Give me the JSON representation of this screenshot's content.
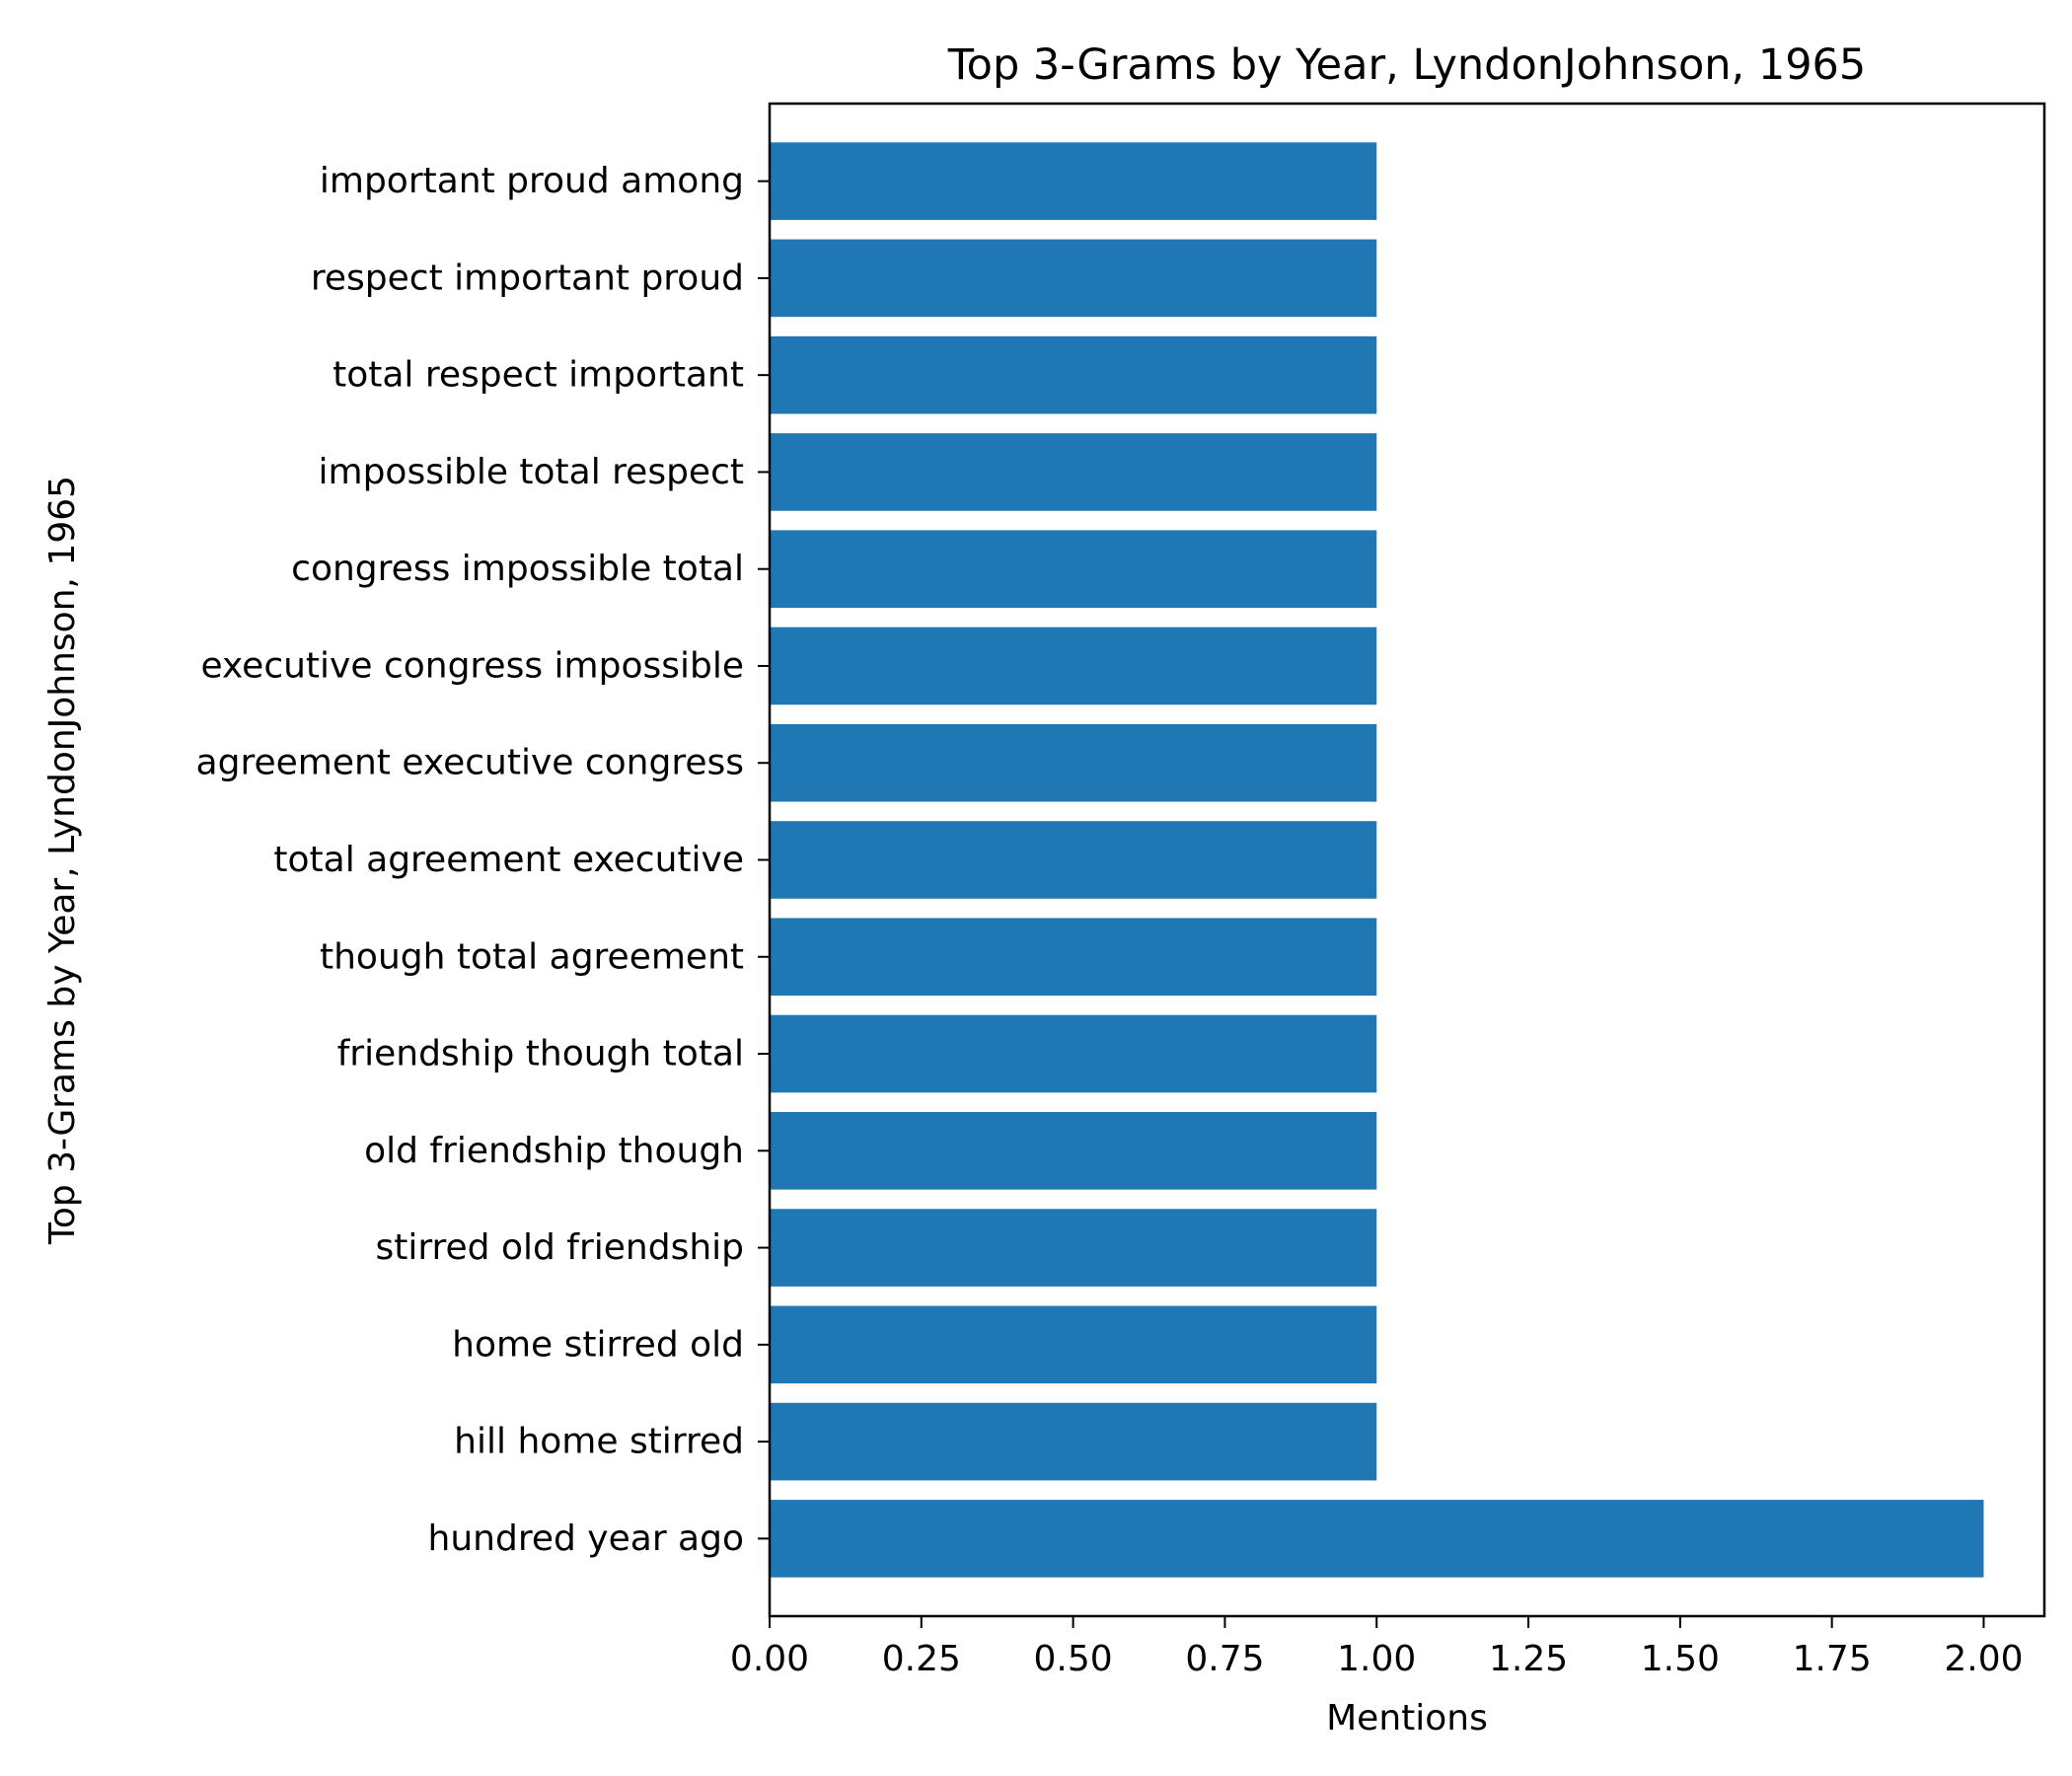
{
  "chart_data": {
    "type": "bar",
    "orientation": "horizontal",
    "title": "Top 3-Grams by Year, LyndonJohnson, 1965",
    "xlabel": "Mentions",
    "ylabel": "Top 3-Grams by Year, LyndonJohnson, 1965",
    "xlim": [
      0,
      2.1
    ],
    "xticks": [
      "0.00",
      "0.25",
      "0.50",
      "0.75",
      "1.00",
      "1.25",
      "1.50",
      "1.75",
      "2.00"
    ],
    "grid": false,
    "legend": "none",
    "bar_color": "#1f77b4",
    "categories": [
      "hundred year ago",
      "hill home stirred",
      "home stirred old",
      "stirred old friendship",
      "old friendship though",
      "friendship though total",
      "though total agreement",
      "total agreement executive",
      "agreement executive congress",
      "executive congress impossible",
      "congress impossible total",
      "impossible total respect",
      "total respect important",
      "respect important proud",
      "important proud among"
    ],
    "values": [
      2,
      1,
      1,
      1,
      1,
      1,
      1,
      1,
      1,
      1,
      1,
      1,
      1,
      1,
      1
    ]
  }
}
